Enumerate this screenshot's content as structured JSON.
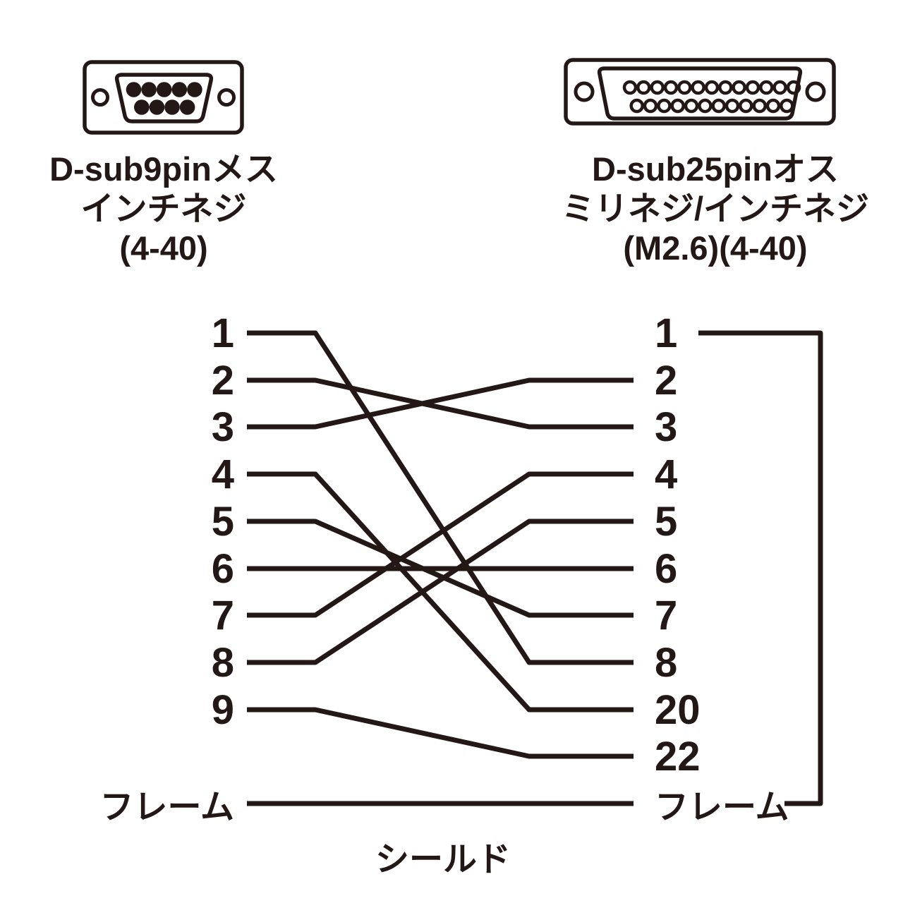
{
  "diagram": {
    "ink_color": "#231815",
    "background_color": "#ffffff",
    "left_connector": {
      "title": "D-sub9pinメス",
      "subtitle": "インチネジ",
      "screw_spec": "(4-40)",
      "pins_top_row": 5,
      "pins_bottom_row": 4,
      "pin_style": "filled"
    },
    "right_connector": {
      "title": "D-sub25pinオス",
      "subtitle": "ミリネジ/インチネジ",
      "screw_spec": "(M2.6)(4-40)",
      "pins_top_row": 13,
      "pins_bottom_row": 12,
      "pin_style": "outline"
    },
    "wiring": {
      "left_labels": [
        "1",
        "2",
        "3",
        "4",
        "5",
        "6",
        "7",
        "8",
        "9",
        "フレーム"
      ],
      "right_labels": [
        "1",
        "2",
        "3",
        "4",
        "5",
        "6",
        "7",
        "8",
        "20",
        "22",
        "フレーム"
      ],
      "connections": [
        {
          "from": "1",
          "to": "8"
        },
        {
          "from": "2",
          "to": "3"
        },
        {
          "from": "3",
          "to": "2"
        },
        {
          "from": "4",
          "to": "20"
        },
        {
          "from": "5",
          "to": "7"
        },
        {
          "from": "6",
          "to": "6"
        },
        {
          "from": "7",
          "to": "4"
        },
        {
          "from": "8",
          "to": "5"
        },
        {
          "from": "9",
          "to": "22"
        },
        {
          "from": "フレーム",
          "to": "フレーム"
        }
      ],
      "right_pin1_to_frame_via_border": true,
      "shield_label": "シールド"
    }
  }
}
